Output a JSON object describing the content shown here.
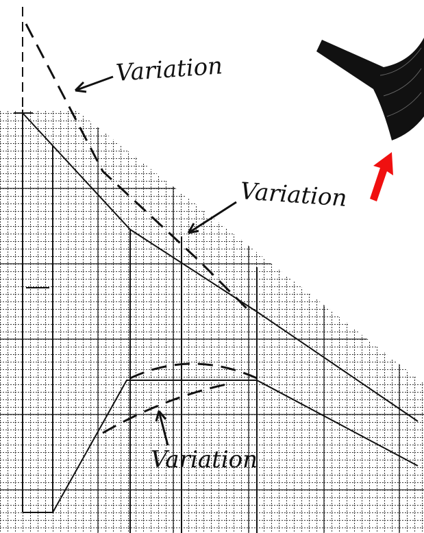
{
  "annotations": [
    {
      "label": "Variation"
    },
    {
      "label": "Variation"
    },
    {
      "label": "Variation"
    }
  ]
}
